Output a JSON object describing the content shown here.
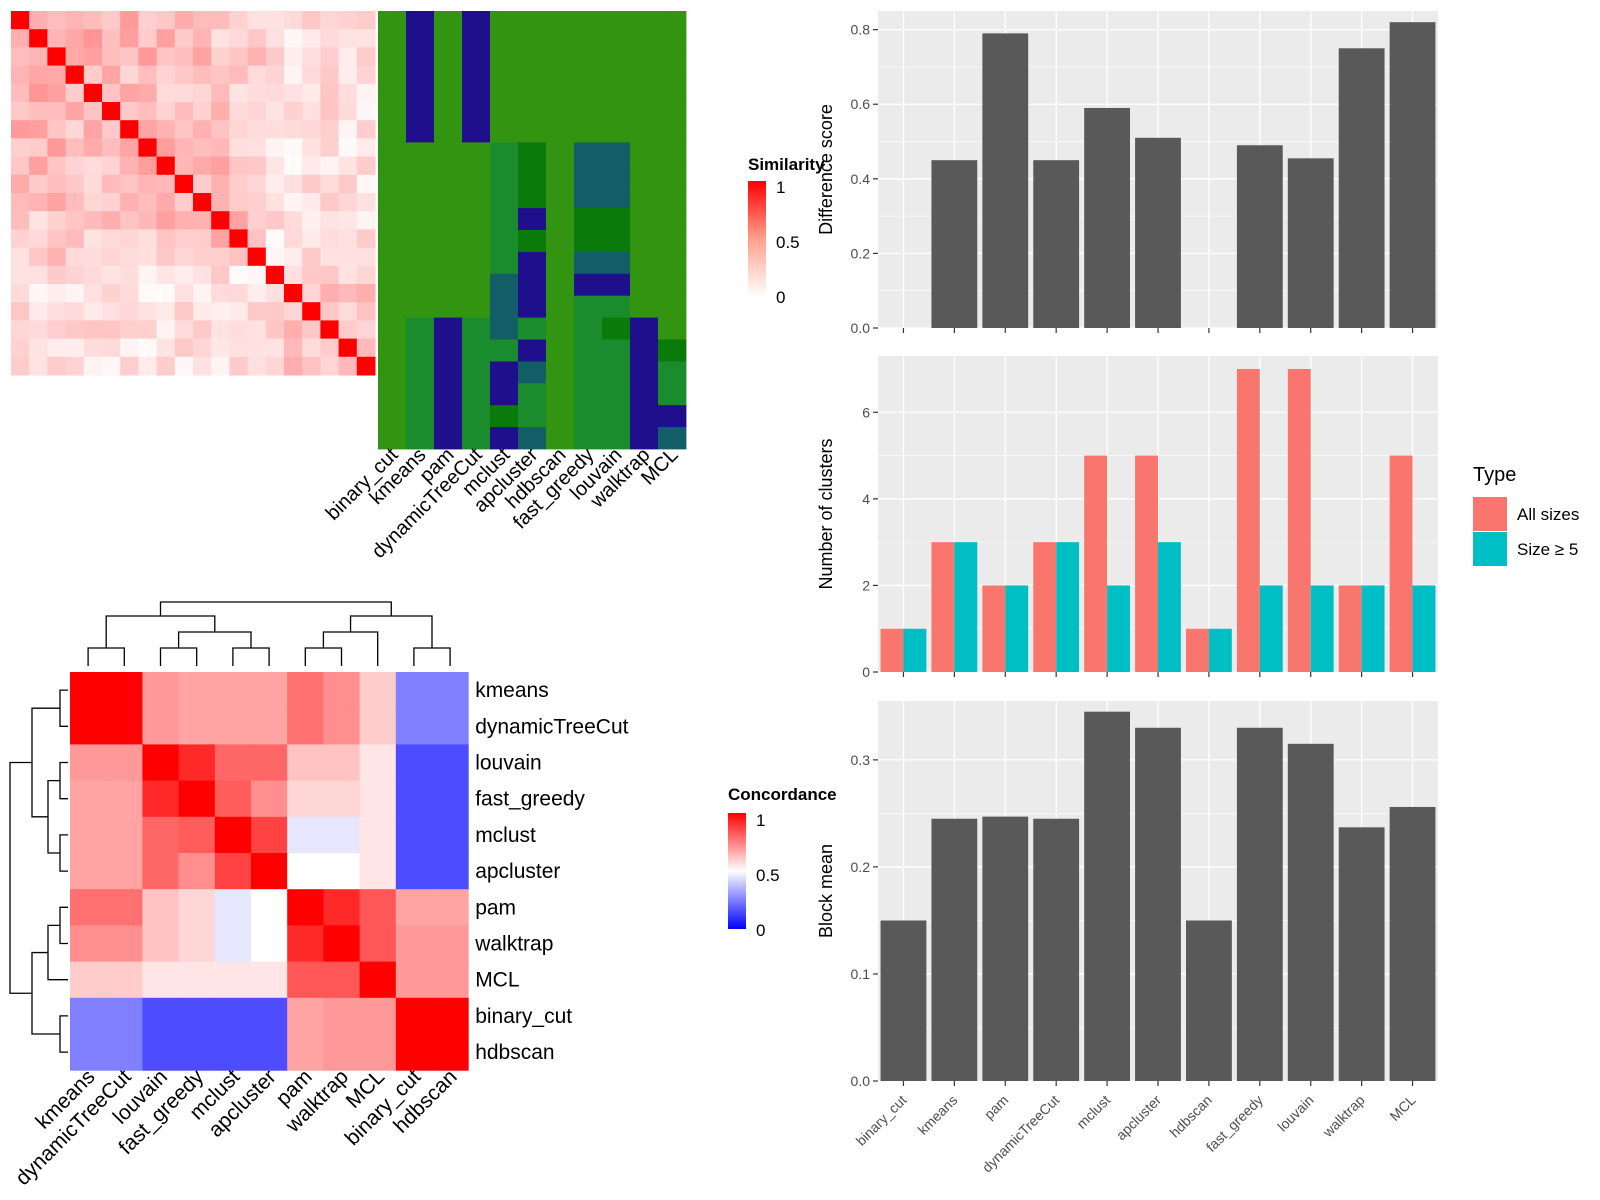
{
  "colors": {
    "heat_low": "#ffffff",
    "heat_high": "#ff0000",
    "conc_low": "#0000ff",
    "conc_mid": "#ffffff",
    "conc_high": "#ff0000",
    "bar_gray": "#595959",
    "panel_bg": "#ebebeb",
    "grid": "#ffffff",
    "all_sizes": "#f8766d",
    "size5": "#00bfc4",
    "cl_green": "#339411",
    "cl_blue": "#1f0f8c",
    "cl_green2": "#1a8c2e",
    "cl_teal": "#135e66",
    "cl_dark": "#0a7a0a"
  },
  "legend_similarity": {
    "title": "Similarity",
    "ticks": [
      "1",
      "0.5",
      "0"
    ]
  },
  "legend_concordance": {
    "title": "Concordance",
    "ticks": [
      "1",
      "0.5",
      "0"
    ]
  },
  "legend_type": {
    "title": "Type",
    "items": [
      "All sizes",
      "Size ≥ 5"
    ]
  },
  "chart_data": [
    {
      "type": "heatmap",
      "name": "similarity",
      "n": 20,
      "colorscale": [
        0,
        1
      ]
    },
    {
      "type": "heatmap",
      "name": "cluster_assignment",
      "columns": [
        "binary_cut",
        "kmeans",
        "pam",
        "dynamicTreeCut",
        "mclust",
        "apcluster",
        "hdbscan",
        "fast_greedy",
        "louvain",
        "walktrap",
        "MCL"
      ]
    },
    {
      "type": "heatmap",
      "name": "concordance",
      "rows": [
        "kmeans",
        "dynamicTreeCut",
        "louvain",
        "fast_greedy",
        "mclust",
        "apcluster",
        "pam",
        "walktrap",
        "MCL",
        "binary_cut",
        "hdbscan"
      ],
      "columns": [
        "kmeans",
        "dynamicTreeCut",
        "louvain",
        "fast_greedy",
        "mclust",
        "apcluster",
        "pam",
        "walktrap",
        "MCL",
        "binary_cut",
        "hdbscan"
      ],
      "values": [
        [
          1.0,
          1.0,
          0.7,
          0.68,
          0.68,
          0.68,
          0.78,
          0.72,
          0.6,
          0.25,
          0.25
        ],
        [
          1.0,
          1.0,
          0.7,
          0.68,
          0.68,
          0.68,
          0.78,
          0.72,
          0.6,
          0.25,
          0.25
        ],
        [
          0.7,
          0.7,
          1.0,
          0.92,
          0.8,
          0.8,
          0.62,
          0.62,
          0.55,
          0.15,
          0.15
        ],
        [
          0.68,
          0.68,
          0.92,
          1.0,
          0.82,
          0.72,
          0.58,
          0.58,
          0.55,
          0.15,
          0.15
        ],
        [
          0.68,
          0.68,
          0.8,
          0.82,
          1.0,
          0.87,
          0.45,
          0.45,
          0.55,
          0.15,
          0.15
        ],
        [
          0.68,
          0.68,
          0.8,
          0.72,
          0.87,
          1.0,
          0.5,
          0.5,
          0.55,
          0.15,
          0.15
        ],
        [
          0.78,
          0.78,
          0.62,
          0.58,
          0.45,
          0.5,
          1.0,
          0.92,
          0.83,
          0.68,
          0.68
        ],
        [
          0.72,
          0.72,
          0.62,
          0.58,
          0.45,
          0.5,
          0.92,
          1.0,
          0.83,
          0.7,
          0.7
        ],
        [
          0.6,
          0.6,
          0.55,
          0.55,
          0.55,
          0.55,
          0.83,
          0.83,
          1.0,
          0.7,
          0.7
        ],
        [
          0.25,
          0.25,
          0.15,
          0.15,
          0.15,
          0.15,
          0.68,
          0.7,
          0.7,
          1.0,
          1.0
        ],
        [
          0.25,
          0.25,
          0.15,
          0.15,
          0.15,
          0.15,
          0.68,
          0.7,
          0.7,
          1.0,
          1.0
        ]
      ],
      "colorscale": [
        0,
        1
      ]
    },
    {
      "type": "bar",
      "name": "difference",
      "categories": [
        "binary_cut",
        "kmeans",
        "pam",
        "dynamicTreeCut",
        "mclust",
        "apcluster",
        "hdbscan",
        "fast_greedy",
        "louvain",
        "walktrap",
        "MCL"
      ],
      "values": [
        0,
        0.45,
        0.79,
        0.45,
        0.59,
        0.51,
        0,
        0.49,
        0.455,
        0.75,
        0.82
      ],
      "ylabel": "Difference score",
      "ylim": [
        0,
        0.85
      ],
      "yticks": [
        0.0,
        0.2,
        0.4,
        0.6,
        0.8
      ],
      "ytick_labels": [
        "0.0",
        "0.2",
        "0.4",
        "0.6",
        "0.8"
      ]
    },
    {
      "type": "bar",
      "name": "num_clusters",
      "categories": [
        "binary_cut",
        "kmeans",
        "pam",
        "dynamicTreeCut",
        "mclust",
        "apcluster",
        "hdbscan",
        "fast_greedy",
        "louvain",
        "walktrap",
        "MCL"
      ],
      "series": [
        {
          "name": "All sizes",
          "values": [
            1,
            3,
            2,
            3,
            5,
            5,
            1,
            7,
            7,
            2,
            5
          ]
        },
        {
          "name": "Size ≥ 5",
          "values": [
            1,
            3,
            2,
            3,
            2,
            3,
            1,
            2,
            2,
            2,
            2
          ]
        }
      ],
      "ylabel": "Number of clusters",
      "ylim": [
        0,
        7.3
      ],
      "yticks": [
        0,
        2,
        4,
        6
      ],
      "ytick_labels": [
        "0",
        "2",
        "4",
        "6"
      ]
    },
    {
      "type": "bar",
      "name": "block_mean",
      "categories": [
        "binary_cut",
        "kmeans",
        "pam",
        "dynamicTreeCut",
        "mclust",
        "apcluster",
        "hdbscan",
        "fast_greedy",
        "louvain",
        "walktrap",
        "MCL"
      ],
      "values": [
        0.15,
        0.245,
        0.247,
        0.245,
        0.345,
        0.33,
        0.15,
        0.33,
        0.315,
        0.237,
        0.256
      ],
      "ylabel": "Block mean",
      "ylim": [
        0,
        0.355
      ],
      "yticks": [
        0.0,
        0.1,
        0.2,
        0.3
      ],
      "ytick_labels": [
        "0.0",
        "0.1",
        "0.2",
        "0.3"
      ]
    }
  ]
}
